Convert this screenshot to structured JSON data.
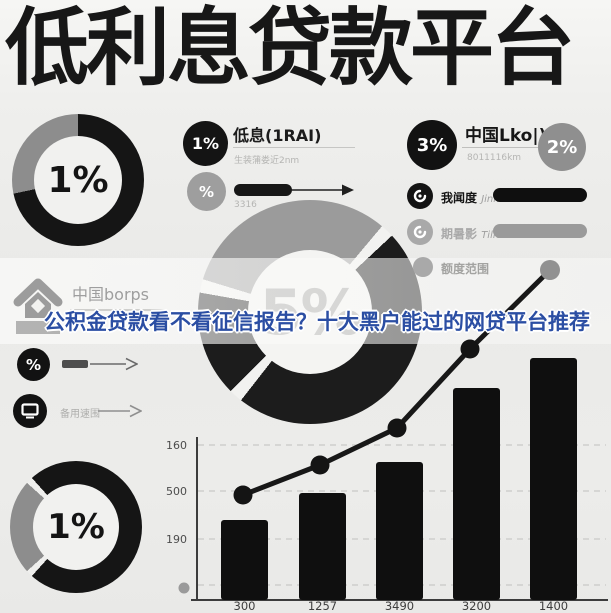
{
  "title": "低利息贷款平台",
  "colors": {
    "accent_blue": "#2b4ea3",
    "ink": "#141414",
    "gray": "#8f8f8f"
  },
  "top_left_donut": {
    "value": "1%"
  },
  "low_interest_block": {
    "badge": "1%",
    "heading": "低息(1RAI)",
    "subtext": "生装蒲娄近2nm",
    "percent_badge": "%",
    "caption": "3316"
  },
  "china_block": {
    "badge_black": "3%",
    "heading": "中国Lko|)",
    "subtext": "8011116km",
    "badge_gray": "2%",
    "rows": [
      {
        "label": "我闻度",
        "sub": "Jinm"
      },
      {
        "label": "期暑影",
        "sub": "Tilied"
      },
      {
        "label": "额度范围",
        "sub": ""
      }
    ]
  },
  "banner": {
    "brand": "中国borps",
    "headline": "公积金贷款看不看征信报告？十大黑户能过的网贷平台推荐"
  },
  "left_column": {
    "percent_badge": "%",
    "monitor_label": "备用速围"
  },
  "center_donut": {
    "value": "5%"
  },
  "bottom_left_donut": {
    "value": "1%"
  },
  "chart_data": {
    "type": "bar",
    "title": "",
    "categories": [
      "300",
      "1257",
      "3490",
      "3200",
      "1400"
    ],
    "values": [
      80,
      107,
      138,
      212,
      242
    ],
    "y_tick_labels": [
      "160",
      "500",
      "190"
    ],
    "line_points": [
      [
        83,
        240
      ],
      [
        160,
        210
      ],
      [
        237,
        173
      ],
      [
        310,
        94
      ],
      [
        390,
        15
      ]
    ],
    "ylim": [
      0,
      345
    ],
    "grid": "dashed horizontal"
  }
}
